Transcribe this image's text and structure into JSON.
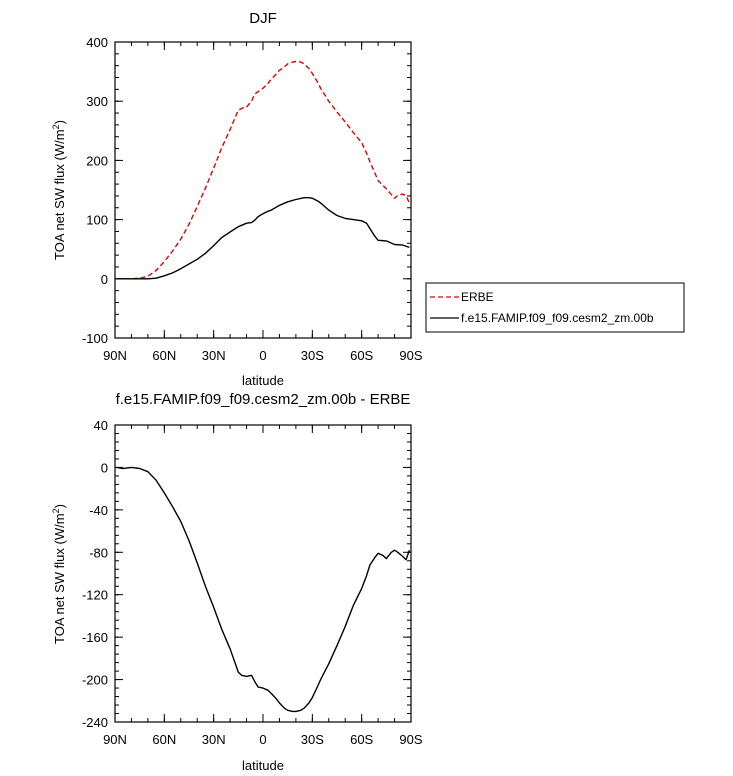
{
  "chart_data": [
    {
      "type": "line",
      "title": "DJF",
      "xlabel": "latitude",
      "ylabel_main": "TOA net SW flux (W/m",
      "ylabel_sup": "2",
      "ylabel_close": ")",
      "xlim": [
        90,
        -90
      ],
      "ylim": [
        -100,
        400
      ],
      "xticks": [
        {
          "value": 90,
          "label": "90N"
        },
        {
          "value": 60,
          "label": "60N"
        },
        {
          "value": 30,
          "label": "30N"
        },
        {
          "value": 0,
          "label": "0"
        },
        {
          "value": -30,
          "label": "30S"
        },
        {
          "value": -60,
          "label": "60S"
        },
        {
          "value": -90,
          "label": "90S"
        }
      ],
      "yticks": [
        {
          "value": 400,
          "label": "400"
        },
        {
          "value": 300,
          "label": "300"
        },
        {
          "value": 200,
          "label": "200"
        },
        {
          "value": 100,
          "label": "100"
        },
        {
          "value": 0,
          "label": "0"
        },
        {
          "value": -100,
          "label": "-100"
        }
      ],
      "series": [
        {
          "name": "ERBE",
          "color": "#e00000",
          "dash": "dashed",
          "x": [
            89,
            85,
            80,
            75,
            70,
            65,
            60,
            55,
            50,
            45,
            40,
            35,
            30,
            25,
            20,
            15,
            12,
            10,
            7,
            5,
            3,
            0,
            -3,
            -5,
            -8,
            -10,
            -13,
            -15,
            -18,
            -20,
            -23,
            -25,
            -28,
            -30,
            -33,
            -35,
            -40,
            -45,
            -50,
            -55,
            -60,
            -63,
            -65,
            -70,
            -75,
            -80,
            -82,
            -85,
            -87,
            -89
          ],
          "values": [
            0,
            0,
            0,
            1,
            4,
            14,
            29,
            47,
            67,
            92,
            122,
            153,
            187,
            222,
            252,
            285,
            289,
            290,
            300,
            312,
            316,
            322,
            330,
            337,
            346,
            352,
            358,
            363,
            366,
            367,
            366,
            363,
            355,
            347,
            333,
            322,
            300,
            282,
            265,
            247,
            230,
            212,
            198,
            166,
            152,
            136,
            141,
            143,
            140,
            128
          ]
        },
        {
          "name": "f.e15.FAMIP.f09_f09.cesm2_zm.00b",
          "color": "#000000",
          "dash": "solid",
          "x": [
            89,
            85,
            80,
            75,
            70,
            65,
            60,
            55,
            50,
            45,
            40,
            35,
            30,
            25,
            20,
            15,
            10,
            7,
            5,
            3,
            0,
            -3,
            -5,
            -8,
            -10,
            -15,
            -20,
            -25,
            -28,
            -30,
            -33,
            -35,
            -40,
            -45,
            -50,
            -55,
            -60,
            -63,
            -65,
            -68,
            -70,
            -75,
            -80,
            -85,
            -89
          ],
          "values": [
            0,
            0,
            0,
            0,
            0,
            1,
            5,
            10,
            17,
            25,
            33,
            43,
            56,
            70,
            79,
            88,
            94,
            95,
            99,
            105,
            110,
            114,
            116,
            121,
            124,
            130,
            134,
            137,
            137,
            136,
            132,
            128,
            116,
            107,
            102,
            100,
            98,
            94,
            85,
            72,
            65,
            64,
            58,
            57,
            53
          ]
        }
      ],
      "legend": [
        "ERBE",
        "f.e15.FAMIP.f09_f09.cesm2_zm.00b"
      ]
    },
    {
      "type": "line",
      "title": "f.e15.FAMIP.f09_f09.cesm2_zm.00b - ERBE",
      "xlabel": "latitude",
      "ylabel_main": "TOA net SW flux (W/m",
      "ylabel_sup": "2",
      "ylabel_close": ")",
      "xlim": [
        90,
        -90
      ],
      "ylim": [
        -240,
        40
      ],
      "xticks": [
        {
          "value": 90,
          "label": "90N"
        },
        {
          "value": 60,
          "label": "60N"
        },
        {
          "value": 30,
          "label": "30N"
        },
        {
          "value": 0,
          "label": "0"
        },
        {
          "value": -30,
          "label": "30S"
        },
        {
          "value": -60,
          "label": "60S"
        },
        {
          "value": -90,
          "label": "90S"
        }
      ],
      "yticks": [
        {
          "value": 40,
          "label": "40"
        },
        {
          "value": 0,
          "label": "0"
        },
        {
          "value": -40,
          "label": "-40"
        },
        {
          "value": -80,
          "label": "-80"
        },
        {
          "value": -120,
          "label": "-120"
        },
        {
          "value": -160,
          "label": "-160"
        },
        {
          "value": -200,
          "label": "-200"
        },
        {
          "value": -240,
          "label": "-240"
        }
      ],
      "series": [
        {
          "name": "f.e15.FAMIP.f09_f09.cesm2_zm.00b - ERBE",
          "color": "#000000",
          "dash": "solid",
          "x": [
            89,
            85,
            80,
            75,
            70,
            65,
            60,
            55,
            50,
            45,
            40,
            35,
            30,
            25,
            20,
            15,
            13,
            10,
            7,
            5,
            3,
            0,
            -3,
            -5,
            -8,
            -10,
            -13,
            -15,
            -18,
            -20,
            -23,
            -25,
            -28,
            -30,
            -33,
            -35,
            -40,
            -45,
            -50,
            -55,
            -60,
            -63,
            -65,
            -68,
            -70,
            -73,
            -75,
            -78,
            -80,
            -82,
            -85,
            -87,
            -89
          ],
          "values": [
            0,
            -1,
            0,
            -1,
            -4,
            -12,
            -24,
            -37,
            -51,
            -69,
            -90,
            -112,
            -132,
            -153,
            -171,
            -193,
            -196,
            -197,
            -196,
            -202,
            -207,
            -208,
            -210,
            -213,
            -218,
            -222,
            -227,
            -229,
            -230,
            -230,
            -229,
            -227,
            -222,
            -217,
            -207,
            -200,
            -185,
            -168,
            -150,
            -130,
            -114,
            -102,
            -92,
            -85,
            -81,
            -83,
            -86,
            -80,
            -78,
            -80,
            -84,
            -87,
            -78
          ]
        }
      ]
    }
  ]
}
